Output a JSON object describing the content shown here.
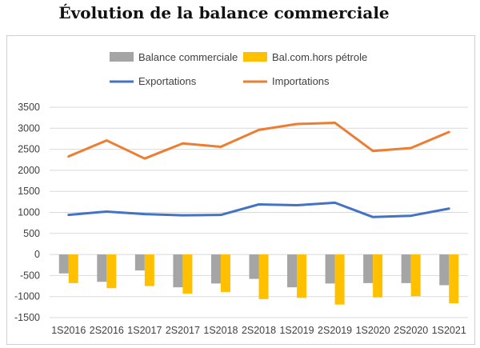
{
  "chart_data": {
    "type": "bar",
    "title": "Évolution de la balance commerciale",
    "categories": [
      "1S2016",
      "2S2016",
      "1S2017",
      "2S2017",
      "1S2018",
      "2S2018",
      "1S2019",
      "2S2019",
      "1S2020",
      "2S2020",
      "1S2021"
    ],
    "ylim": [
      -1500,
      3500
    ],
    "yticks": [
      3500,
      3000,
      2500,
      2000,
      1500,
      1000,
      500,
      0,
      -500,
      -1000,
      -1500
    ],
    "grid": true,
    "legend_placement": "top",
    "bar_series": [
      {
        "name": "Balance commerciale",
        "color": "#A5A5A5",
        "values": [
          -450,
          -650,
          -380,
          -780,
          -690,
          -580,
          -780,
          -690,
          -680,
          -680,
          -730
        ]
      },
      {
        "name": "Bal.com.hors pétrole",
        "color": "#FFC000",
        "values": [
          -680,
          -800,
          -750,
          -930,
          -890,
          -1060,
          -1030,
          -1190,
          -1020,
          -990,
          -1160
        ]
      }
    ],
    "line_series": [
      {
        "name": "Exportations",
        "color": "#4472C4",
        "values": [
          940,
          1020,
          960,
          930,
          940,
          1190,
          1170,
          1230,
          890,
          920,
          1090
        ]
      },
      {
        "name": "Importations",
        "color": "#ED7D31",
        "values": [
          2330,
          2710,
          2280,
          2640,
          2560,
          2960,
          3100,
          3130,
          2460,
          2530,
          2910
        ]
      }
    ]
  }
}
